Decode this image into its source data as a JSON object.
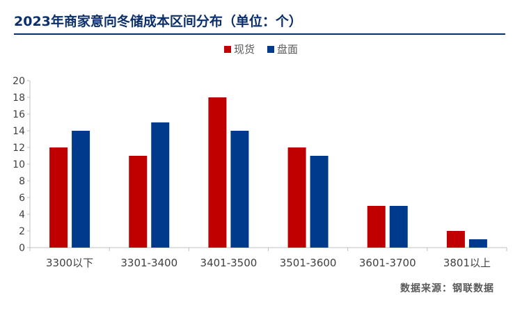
{
  "title": "2023年商家意向冬储成本区间分布（单位：个）",
  "source": "数据来源：钢联数据",
  "chart_data": {
    "type": "bar",
    "title": "2023年商家意向冬储成本区间分布（单位：个）",
    "categories": [
      "3300以下",
      "3301-3400",
      "3401-3500",
      "3501-3600",
      "3601-3700",
      "3801以上"
    ],
    "series": [
      {
        "name": "现货",
        "color": "#c00000",
        "values": [
          12,
          11,
          18,
          12,
          5,
          2
        ]
      },
      {
        "name": "盘面",
        "color": "#003a8c",
        "values": [
          14,
          15,
          14,
          11,
          5,
          1
        ]
      }
    ],
    "ylim": [
      0,
      20
    ],
    "yticks": [
      0,
      2,
      4,
      6,
      8,
      10,
      12,
      14,
      16,
      18,
      20
    ],
    "xlabel": "",
    "ylabel": "",
    "grid": false,
    "legend": "top-center"
  }
}
